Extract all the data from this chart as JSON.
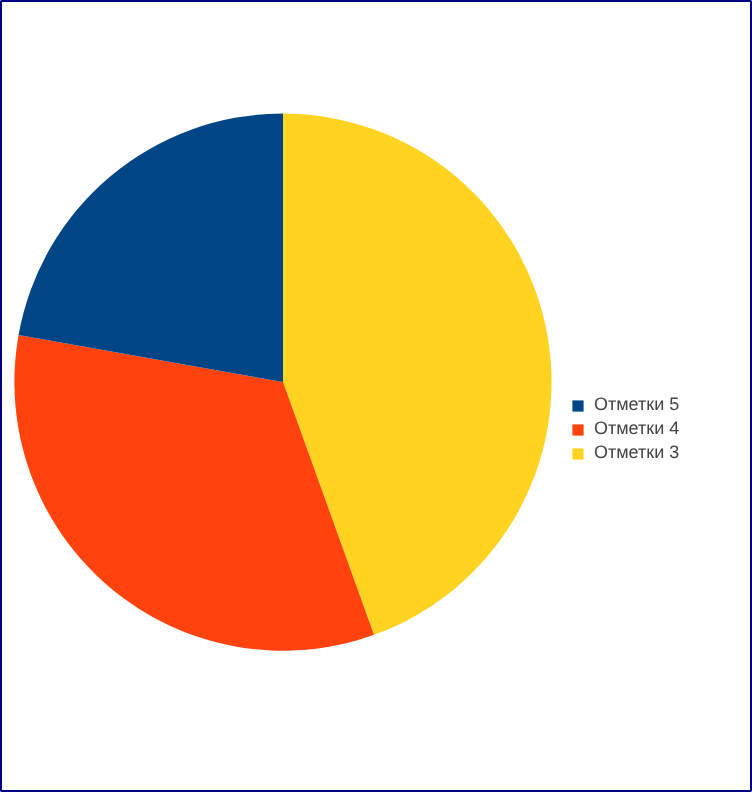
{
  "chart_data": {
    "type": "pie",
    "categories": [
      "Отметки 5",
      "Отметки 4",
      "Отметки 3"
    ],
    "values": [
      22.2,
      33.3,
      44.5
    ],
    "colors": [
      "#004586",
      "#ff420e",
      "#ffd320"
    ],
    "legend": "right"
  }
}
